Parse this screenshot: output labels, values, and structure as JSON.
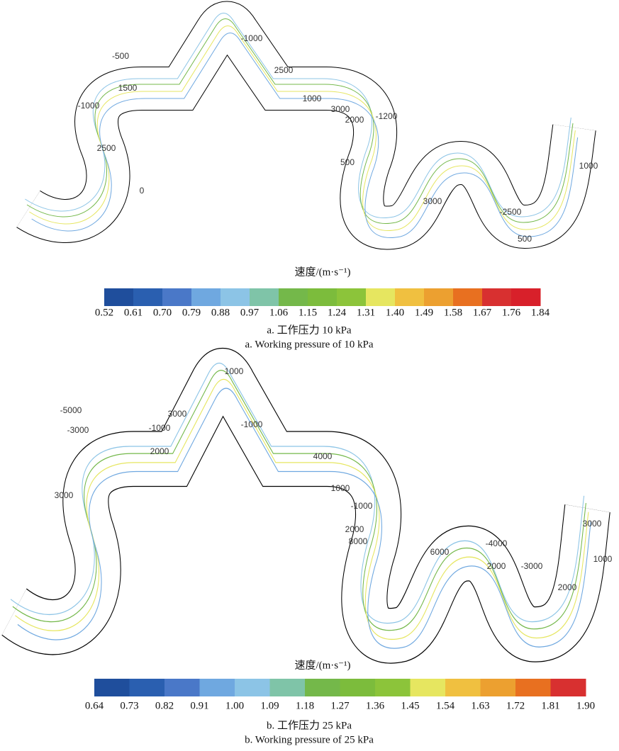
{
  "panels": [
    {
      "contour_labels": [
        "-500",
        "-1000",
        "1500",
        "-1000",
        "2500",
        "1000",
        "3000",
        "2000",
        "-1200",
        "500",
        "2500",
        "3000",
        "-2500",
        "500",
        "1000",
        "0"
      ],
      "colorbar_title": "速度/(m·s⁻¹)",
      "colorbar_ticks": [
        "0.52",
        "0.61",
        "0.70",
        "0.79",
        "0.88",
        "0.97",
        "1.06",
        "1.15",
        "1.24",
        "1.31",
        "1.40",
        "1.49",
        "1.58",
        "1.67",
        "1.76",
        "1.84"
      ],
      "colors": [
        "#1f4e9c",
        "#2a5fb0",
        "#4a78c8",
        "#6fa8e0",
        "#8cc4e6",
        "#7fc4a8",
        "#74b84a",
        "#7cbc3c",
        "#8cc43a",
        "#e6e660",
        "#f0c040",
        "#eca030",
        "#e87020",
        "#d83030",
        "#d8202a"
      ],
      "caption_cn": "a. 工作压力 10 kPa",
      "caption_en": "a. Working pressure of 10 kPa"
    },
    {
      "contour_labels": [
        "-5000",
        "-3000",
        "-1000",
        "3000",
        "1000",
        "-1000",
        "2000",
        "3000",
        "1000",
        "4000",
        "2000",
        "-1000",
        "8000",
        "6000",
        "-4000",
        "-3000",
        "2000",
        "3000",
        "1000",
        "2000"
      ],
      "colorbar_title": "速度/(m·s⁻¹)",
      "colorbar_ticks": [
        "0.64",
        "0.73",
        "0.82",
        "0.91",
        "1.00",
        "1.09",
        "1.18",
        "1.27",
        "1.36",
        "1.45",
        "1.54",
        "1.63",
        "1.72",
        "1.81",
        "1.90"
      ],
      "colors": [
        "#1f4e9c",
        "#2a5fb0",
        "#4a78c8",
        "#6fa8e0",
        "#8cc4e6",
        "#7fc4a8",
        "#74b84a",
        "#7cbc3c",
        "#8cc43a",
        "#e6e660",
        "#f0c040",
        "#eca030",
        "#e87020",
        "#d83030"
      ],
      "caption_cn": "b. 工作压力 25 kPa",
      "caption_en": "b. Working pressure of 25 kPa"
    }
  ]
}
